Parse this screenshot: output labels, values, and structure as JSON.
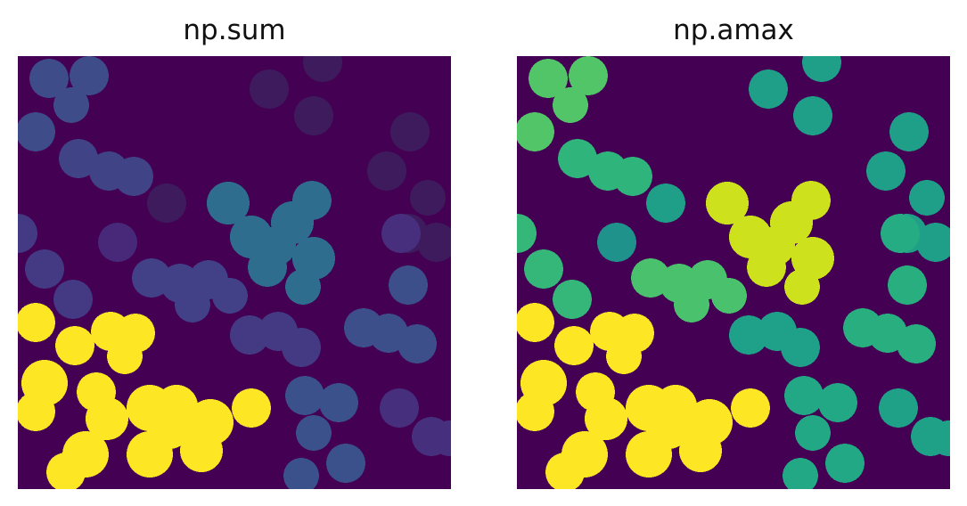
{
  "chart_data": [
    {
      "type": "heatmap",
      "title": "np.sum",
      "colormap": "viridis",
      "background_color": "#440154",
      "grid": false,
      "axes_visible": false,
      "regions": [
        {
          "id": "cluster-top-left",
          "color": "#3e4c8a"
        },
        {
          "id": "cluster-upper-band",
          "color": "#414387"
        },
        {
          "id": "cluster-center-right",
          "color": "#2e6d8e"
        },
        {
          "id": "cluster-right-top",
          "color": "#3e1b5d"
        },
        {
          "id": "cluster-left-mid",
          "color": "#443983"
        },
        {
          "id": "cluster-isolated-mid",
          "color": "#482878"
        },
        {
          "id": "cluster-middle",
          "color": "#424086"
        },
        {
          "id": "cluster-center-low",
          "color": "#443a83"
        },
        {
          "id": "cluster-right-mid",
          "color": "#3c4f8a"
        },
        {
          "id": "cluster-right-upper",
          "color": "#472f7d"
        },
        {
          "id": "cluster-bottom-left",
          "color": "#fde725"
        },
        {
          "id": "cluster-bottom-middle",
          "color": "#3b518b"
        },
        {
          "id": "cluster-bottom-right",
          "color": "#462f7c"
        }
      ]
    },
    {
      "type": "heatmap",
      "title": "np.amax",
      "colormap": "viridis",
      "background_color": "#440154",
      "grid": false,
      "axes_visible": false,
      "regions": [
        {
          "id": "cluster-top-left",
          "color": "#52c569"
        },
        {
          "id": "cluster-upper-band",
          "color": "#2fb47c"
        },
        {
          "id": "cluster-center-right",
          "color": "#cde11d"
        },
        {
          "id": "cluster-right-top",
          "color": "#1f9f88"
        },
        {
          "id": "cluster-left-mid",
          "color": "#35b779"
        },
        {
          "id": "cluster-isolated-mid",
          "color": "#20928c"
        },
        {
          "id": "cluster-middle",
          "color": "#4ac16d"
        },
        {
          "id": "cluster-center-low",
          "color": "#1fa088"
        },
        {
          "id": "cluster-right-mid",
          "color": "#29af7f"
        },
        {
          "id": "cluster-right-upper",
          "color": "#25ac82"
        },
        {
          "id": "cluster-bottom-left",
          "color": "#fde725"
        },
        {
          "id": "cluster-bottom-middle",
          "color": "#22a884"
        },
        {
          "id": "cluster-bottom-right",
          "color": "#1fa187"
        }
      ]
    }
  ]
}
